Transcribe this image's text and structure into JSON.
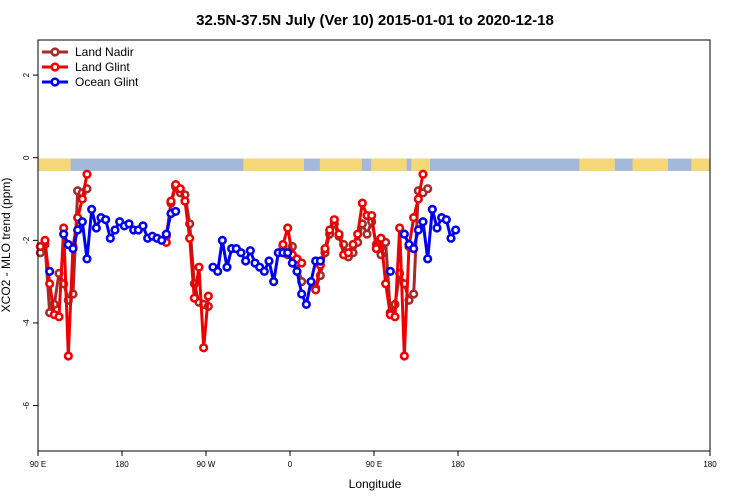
{
  "chart_data": {
    "type": "line",
    "title": "32.5N-37.5N July (Ver 10)   2015-01-01 to 2020-12-18",
    "xlabel": "Longitude",
    "ylabel": "XCO2 - MLO trend (ppm)",
    "xlim": [
      0,
      720
    ],
    "ylim": [
      -7.1,
      2.85
    ],
    "x_ticks": [
      {
        "value": 0,
        "label": "90 E"
      },
      {
        "value": 90,
        "label": "180"
      },
      {
        "value": 180,
        "label": "90 W"
      },
      {
        "value": 270,
        "label": "0"
      },
      {
        "value": 360,
        "label": "90 E"
      },
      {
        "value": 450,
        "label": "180"
      }
    ],
    "y_ticks": [
      2,
      0,
      -2,
      -4,
      -6
    ],
    "legend_position": "top-left",
    "land_strip": {
      "y_top": -0.02,
      "y_bottom": -0.32,
      "ocean_color": "#a4b9d9",
      "land_color": "#f5d77a",
      "land_ranges": [
        [
          -2,
          35
        ],
        [
          220,
          285
        ],
        [
          302,
          347
        ],
        [
          357,
          395
        ],
        [
          400,
          420
        ],
        [
          580,
          618
        ],
        [
          637,
          675
        ],
        [
          700,
          722
        ]
      ]
    },
    "series": [
      {
        "name": "Land Nadir",
        "color": "#a52a2a",
        "points": [
          [
            2.5,
            -2.3
          ],
          [
            7.5,
            -2.1
          ],
          [
            12.5,
            -3.75
          ],
          [
            17.5,
            -3.55
          ],
          [
            22.5,
            -2.8
          ],
          [
            27.5,
            -3.05
          ],
          [
            32.5,
            -3.45
          ],
          [
            37.5,
            -3.3
          ],
          [
            42.5,
            -0.8
          ],
          [
            47.5,
            -0.85
          ],
          [
            52.5,
            -0.75
          ],
          [
            137.5,
            -1.9
          ],
          [
            142.5,
            -1.1
          ],
          [
            147.5,
            -0.7
          ],
          [
            152.5,
            -0.85
          ],
          [
            157.5,
            -0.9
          ],
          [
            162.5,
            -1.6
          ],
          [
            167.5,
            -3.05
          ],
          [
            172.5,
            -3.5
          ],
          [
            177.5,
            -3.55
          ],
          [
            182.5,
            -3.6
          ],
          [
            262.5,
            -2.15
          ],
          [
            267.5,
            -2.35
          ],
          [
            272.5,
            -2.15
          ],
          [
            277.5,
            -2.55
          ],
          [
            282.5,
            -3.0
          ],
          [
            297.5,
            -3.15
          ],
          [
            302.5,
            -2.85
          ],
          [
            307.5,
            -2.3
          ],
          [
            312.5,
            -1.85
          ],
          [
            317.5,
            -1.6
          ],
          [
            322.5,
            -1.9
          ],
          [
            327.5,
            -2.1
          ],
          [
            332.5,
            -2.4
          ],
          [
            337.5,
            -2.3
          ],
          [
            342.5,
            -2.05
          ],
          [
            347.5,
            -1.6
          ],
          [
            352.5,
            -1.85
          ],
          [
            357.5,
            -1.55
          ],
          [
            362.5,
            -2.1
          ],
          [
            367.5,
            -2.35
          ],
          [
            372.5,
            -2.05
          ],
          [
            377.5,
            -3.75
          ],
          [
            382.5,
            -3.55
          ],
          [
            387.5,
            -2.8
          ],
          [
            392.5,
            -3.05
          ],
          [
            397.5,
            -3.45
          ],
          [
            402.5,
            -3.3
          ],
          [
            407.5,
            -0.8
          ],
          [
            412.5,
            -0.85
          ],
          [
            417.5,
            -0.75
          ]
        ]
      },
      {
        "name": "Land Glint",
        "color": "#ee0000",
        "points": [
          [
            2.5,
            -2.15
          ],
          [
            7.5,
            -2.0
          ],
          [
            12.5,
            -3.05
          ],
          [
            17.5,
            -3.8
          ],
          [
            22.5,
            -3.85
          ],
          [
            27.5,
            -1.7
          ],
          [
            32.5,
            -4.8
          ],
          [
            37.5,
            -2.15
          ],
          [
            42.5,
            -1.45
          ],
          [
            47.5,
            -1.0
          ],
          [
            52.5,
            -0.4
          ],
          [
            137.5,
            -2.05
          ],
          [
            142.5,
            -1.05
          ],
          [
            147.5,
            -0.65
          ],
          [
            152.5,
            -0.75
          ],
          [
            157.5,
            -1.05
          ],
          [
            162.5,
            -1.95
          ],
          [
            167.5,
            -3.4
          ],
          [
            172.5,
            -2.65
          ],
          [
            177.5,
            -4.6
          ],
          [
            182.5,
            -3.35
          ],
          [
            262.5,
            -2.1
          ],
          [
            267.5,
            -1.7
          ],
          [
            272.5,
            -2.35
          ],
          [
            277.5,
            -2.45
          ],
          [
            282.5,
            -2.55
          ],
          [
            297.5,
            -3.2
          ],
          [
            302.5,
            -2.6
          ],
          [
            307.5,
            -2.2
          ],
          [
            312.5,
            -1.75
          ],
          [
            317.5,
            -1.5
          ],
          [
            322.5,
            -1.85
          ],
          [
            327.5,
            -2.35
          ],
          [
            332.5,
            -2.3
          ],
          [
            337.5,
            -2.1
          ],
          [
            342.5,
            -1.85
          ],
          [
            347.5,
            -1.1
          ],
          [
            352.5,
            -1.4
          ],
          [
            357.5,
            -1.4
          ],
          [
            362.5,
            -2.2
          ],
          [
            367.5,
            -1.95
          ],
          [
            372.5,
            -3.05
          ],
          [
            377.5,
            -3.8
          ],
          [
            382.5,
            -3.85
          ],
          [
            387.5,
            -1.7
          ],
          [
            392.5,
            -4.8
          ],
          [
            397.5,
            -2.15
          ],
          [
            402.5,
            -1.45
          ],
          [
            407.5,
            -1.0
          ],
          [
            412.5,
            -0.4
          ]
        ]
      },
      {
        "name": "Ocean Glint",
        "color": "#0000ee",
        "points": [
          [
            12.5,
            -2.75
          ],
          [
            27.5,
            -1.85
          ],
          [
            32.5,
            -2.1
          ],
          [
            37.5,
            -2.2
          ],
          [
            42.5,
            -1.75
          ],
          [
            47.5,
            -1.55
          ],
          [
            52.5,
            -2.45
          ],
          [
            57.5,
            -1.25
          ],
          [
            62.5,
            -1.7
          ],
          [
            67.5,
            -1.45
          ],
          [
            72.5,
            -1.5
          ],
          [
            77.5,
            -1.95
          ],
          [
            82.5,
            -1.75
          ],
          [
            87.5,
            -1.55
          ],
          [
            92.5,
            -1.65
          ],
          [
            97.5,
            -1.6
          ],
          [
            102.5,
            -1.75
          ],
          [
            107.5,
            -1.75
          ],
          [
            112.5,
            -1.65
          ],
          [
            117.5,
            -1.95
          ],
          [
            122.5,
            -1.9
          ],
          [
            127.5,
            -1.95
          ],
          [
            132.5,
            -2.0
          ],
          [
            137.5,
            -1.85
          ],
          [
            142.5,
            -1.35
          ],
          [
            147.5,
            -1.3
          ],
          [
            187.5,
            -2.65
          ],
          [
            192.5,
            -2.75
          ],
          [
            197.5,
            -2.0
          ],
          [
            202.5,
            -2.65
          ],
          [
            207.5,
            -2.2
          ],
          [
            212.5,
            -2.2
          ],
          [
            217.5,
            -2.3
          ],
          [
            222.5,
            -2.5
          ],
          [
            227.5,
            -2.25
          ],
          [
            232.5,
            -2.55
          ],
          [
            237.5,
            -2.65
          ],
          [
            242.5,
            -2.75
          ],
          [
            247.5,
            -2.5
          ],
          [
            252.5,
            -3.0
          ],
          [
            257.5,
            -2.3
          ],
          [
            262.5,
            -2.3
          ],
          [
            267.5,
            -2.3
          ],
          [
            272.5,
            -2.55
          ],
          [
            277.5,
            -2.75
          ],
          [
            282.5,
            -3.3
          ],
          [
            287.5,
            -3.55
          ],
          [
            292.5,
            -3.0
          ],
          [
            297.5,
            -2.5
          ],
          [
            302.5,
            -2.5
          ],
          [
            377.5,
            -2.75
          ],
          [
            392.5,
            -1.85
          ],
          [
            397.5,
            -2.1
          ],
          [
            402.5,
            -2.2
          ],
          [
            407.5,
            -1.75
          ],
          [
            412.5,
            -1.55
          ],
          [
            417.5,
            -2.45
          ],
          [
            422.5,
            -1.25
          ],
          [
            427.5,
            -1.7
          ],
          [
            432.5,
            -1.45
          ],
          [
            437.5,
            -1.5
          ],
          [
            442.5,
            -1.95
          ],
          [
            447.5,
            -1.75
          ]
        ]
      }
    ]
  }
}
